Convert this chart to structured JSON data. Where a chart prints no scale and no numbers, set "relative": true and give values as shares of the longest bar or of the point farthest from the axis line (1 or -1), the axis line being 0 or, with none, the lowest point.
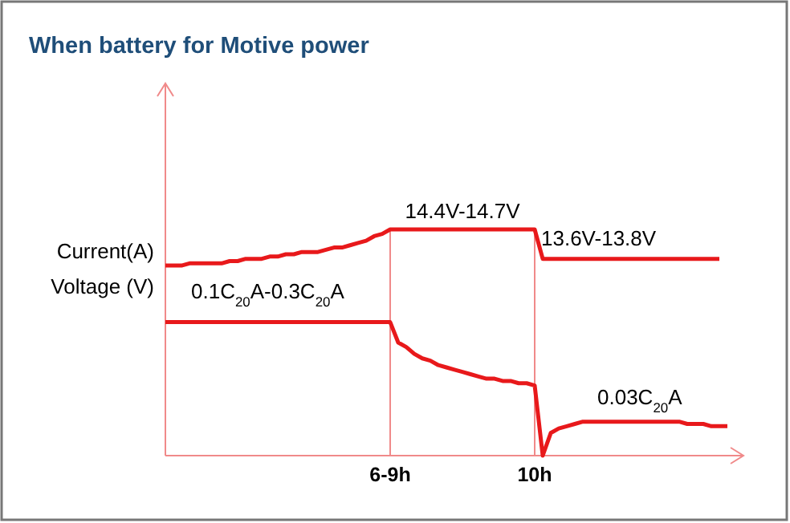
{
  "chart_data": {
    "type": "line",
    "title": "When battery for Motive power",
    "relative": true,
    "categories": [
      null,
      null,
      null,
      null,
      null,
      null,
      null,
      null,
      null,
      null,
      null,
      null,
      null,
      null,
      null,
      null,
      null,
      null,
      null,
      null,
      null,
      null,
      null,
      null,
      null,
      null,
      null,
      null,
      "6-9h",
      null,
      null,
      null,
      null,
      null,
      null,
      null,
      null,
      null,
      null,
      null,
      null,
      null,
      null,
      null,
      null,
      null,
      "10h",
      null,
      null,
      null,
      null,
      null,
      null,
      null,
      null,
      null,
      null,
      null,
      null,
      null,
      null,
      null,
      null,
      null,
      null,
      null,
      null,
      null,
      null,
      null,
      null,
      null,
      null
    ],
    "grid": "x",
    "marker": "none",
    "line_style": "solid",
    "series": [
      {
        "color": "#e8191b",
        "values": [
          0.84,
          0.84,
          0.84,
          0.85,
          0.85,
          0.85,
          0.85,
          0.85,
          0.86,
          0.86,
          0.87,
          0.87,
          0.87,
          0.88,
          0.88,
          0.89,
          0.89,
          0.9,
          0.9,
          0.9,
          0.91,
          0.92,
          0.92,
          0.93,
          0.94,
          0.95,
          0.97,
          0.98,
          1,
          1,
          1,
          1,
          1,
          1,
          1,
          1,
          1,
          1,
          1,
          1,
          1,
          1,
          1,
          1,
          1,
          1,
          1,
          0.87,
          0.87,
          0.87,
          0.87,
          0.87,
          0.87,
          0.87,
          0.87,
          0.87,
          0.87,
          0.87,
          0.87,
          0.87,
          0.87,
          0.87,
          0.87,
          0.87,
          0.87,
          0.87,
          0.87,
          0.87,
          0.87,
          0.87,
          null,
          null,
          null
        ]
      },
      {
        "color": "#e8191b",
        "values": [
          0.59,
          0.59,
          0.59,
          0.59,
          0.59,
          0.59,
          0.59,
          0.59,
          0.59,
          0.59,
          0.59,
          0.59,
          0.59,
          0.59,
          0.59,
          0.59,
          0.59,
          0.59,
          0.59,
          0.59,
          0.59,
          0.59,
          0.59,
          0.59,
          0.59,
          0.59,
          0.59,
          0.59,
          0.59,
          0.5,
          0.48,
          0.45,
          0.43,
          0.42,
          0.4,
          0.39,
          0.38,
          0.37,
          0.36,
          0.35,
          0.34,
          0.34,
          0.33,
          0.33,
          0.32,
          0.32,
          0.31,
          0,
          0.1,
          0.12,
          0.13,
          0.14,
          0.15,
          0.15,
          0.15,
          0.15,
          0.15,
          0.15,
          0.15,
          0.15,
          0.15,
          0.15,
          0.15,
          0.15,
          0.15,
          0.14,
          0.14,
          0.14,
          0.13,
          0.13,
          0.13,
          null,
          null
        ]
      }
    ],
    "annotations": [
      "Current(A)",
      "Voltage (V)",
      "14.4V-14.7V",
      "13.6V-13.8V",
      "0.1C$_{20}$A-0.3C$_{20}$A",
      "0.03C$_{20}$A"
    ]
  }
}
